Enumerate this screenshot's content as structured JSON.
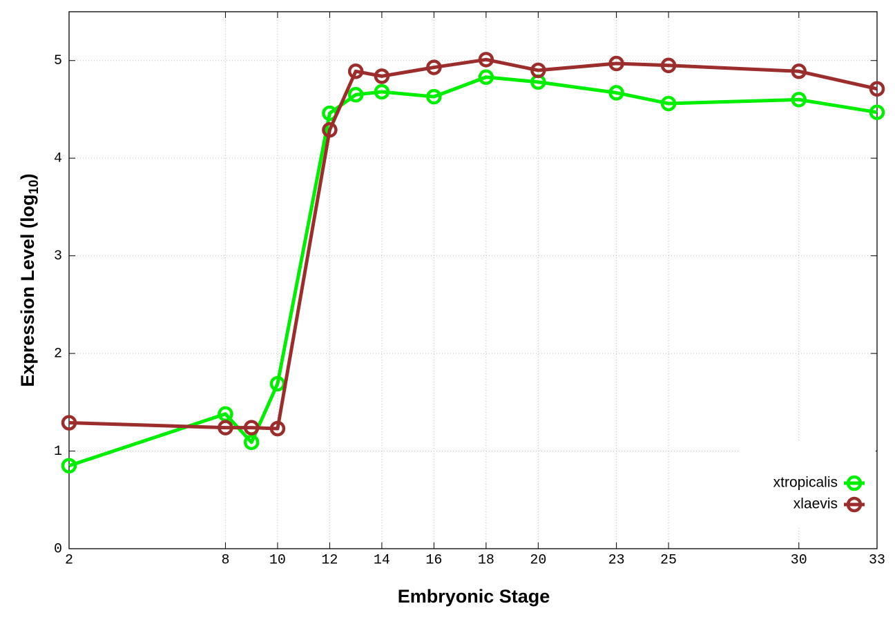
{
  "chart_data": {
    "type": "line",
    "x_label": "Embryonic Stage",
    "y_label": [
      "Expression Level (log",
      "10",
      ")"
    ],
    "x": [
      2,
      8,
      9,
      10,
      12,
      13,
      14,
      16,
      18,
      20,
      23,
      25,
      30,
      33
    ],
    "series": [
      {
        "name": "xtropicalis",
        "color": "#00ee00",
        "values": [
          0.85,
          1.38,
          1.09,
          1.69,
          4.46,
          4.65,
          4.68,
          4.63,
          4.83,
          4.78,
          4.67,
          4.56,
          4.6,
          4.47
        ]
      },
      {
        "name": "xlaevis",
        "color": "#9b2d2d",
        "values": [
          1.29,
          1.24,
          1.24,
          1.23,
          4.29,
          4.89,
          4.84,
          4.93,
          5.01,
          4.9,
          4.97,
          4.95,
          4.89,
          4.71
        ]
      }
    ],
    "xlim": [
      2,
      33
    ],
    "xticks": [
      2,
      8,
      10,
      12,
      14,
      16,
      18,
      20,
      23,
      25,
      30,
      33
    ],
    "ylim": [
      0,
      5.5
    ],
    "yticks": [
      0,
      1,
      2,
      3,
      4,
      5
    ],
    "grid": true,
    "legend": "lower right"
  }
}
